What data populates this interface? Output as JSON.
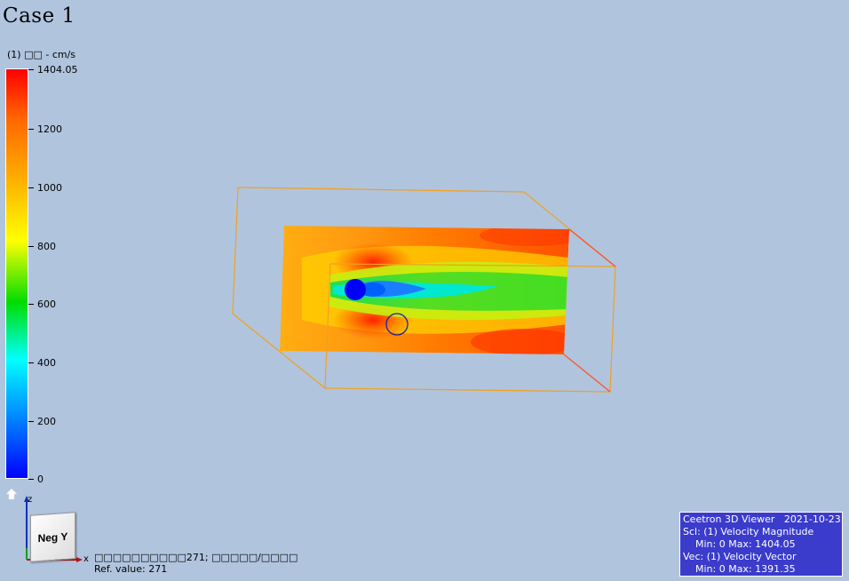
{
  "title": "Case 1",
  "legend": {
    "title": "(1) □□ - cm/s",
    "ticks": [
      "1404.05",
      "1200",
      "1000",
      "800",
      "600",
      "400",
      "200",
      "0"
    ],
    "min": 0,
    "max": 1404.05,
    "colors": [
      "#ff0000",
      "#ff6600",
      "#ffaa00",
      "#ffff00",
      "#00dd00",
      "#00ffff",
      "#0088ff",
      "#0000ff"
    ]
  },
  "nav": {
    "home_icon": "home-icon",
    "view_label": "Neg Y",
    "axis_z": "z",
    "axis_x": "x"
  },
  "reference": {
    "line1": "□□□□□□□□□□271; □□□□□/□□□□",
    "line2": "Ref. value: 271"
  },
  "info": {
    "line1": "Ceetron 3D Viewer   2021-10-23",
    "line2": "Scl: (1) Velocity Magnitude",
    "line3": "    Min: 0 Max: 1404.05",
    "line4": "Vec: (1) Velocity Vector",
    "line5": "    Min: 0 Max: 1391.35"
  },
  "colors": {
    "background": "#b0c4de",
    "bounding_box": "#f0a020",
    "obstacle": "#0000ff",
    "info_bg": "#3b3bcc"
  }
}
